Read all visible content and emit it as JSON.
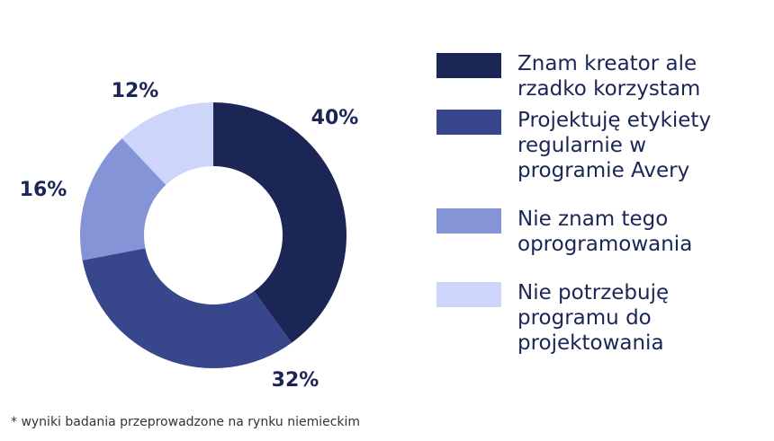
{
  "chart_data": {
    "type": "donut",
    "series": [
      {
        "name": "Znam kreator ale rzadko korzystam",
        "color": "#1b2657",
        "values": [
          40
        ],
        "value_labels": [
          "40%"
        ]
      },
      {
        "name": "Projektuję etykiety regularnie w programie Avery",
        "color": "#38478c",
        "values": [
          32
        ],
        "value_labels": [
          "32%"
        ]
      },
      {
        "name": "Nie znam tego oprogramowania",
        "color": "#8494d6",
        "values": [
          16
        ],
        "value_labels": [
          "16%"
        ]
      },
      {
        "name": "Nie potrzebuję programu do projektowania",
        "color": "#cdd5fb",
        "values": [
          12
        ],
        "value_labels": [
          "12%"
        ]
      }
    ],
    "footnote": "* wyniki badania przeprowadzone na rynku niemieckim"
  }
}
